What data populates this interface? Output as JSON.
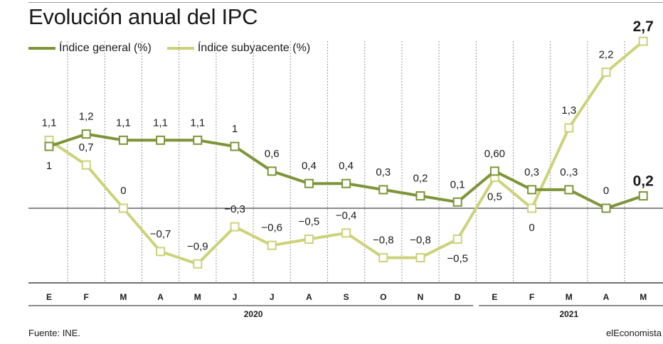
{
  "header": {
    "title": "Evolución anual del IPC"
  },
  "legend": {
    "items": [
      {
        "label": "Índice general (%)",
        "color": "#7d9539"
      },
      {
        "label": "Índice subyacente (%)",
        "color": "#cdd27a"
      }
    ]
  },
  "footer": {
    "source": "Fuente: INE.",
    "brand": "elEconomista"
  },
  "chart_data": {
    "type": "line",
    "categories": [
      "E",
      "F",
      "M",
      "A",
      "M",
      "J",
      "J",
      "A",
      "S",
      "O",
      "N",
      "D",
      "E",
      "F",
      "M",
      "A",
      "M"
    ],
    "years": [
      {
        "label": "2020",
        "from": 0,
        "to": 11
      },
      {
        "label": "2021",
        "from": 12,
        "to": 16
      }
    ],
    "ylim": [
      -0.95,
      2.8
    ],
    "grid": "vertical-dashed",
    "series": [
      {
        "name": "Índice general (%)",
        "color": "#7d9539",
        "values": [
          1,
          1.2,
          1.1,
          1.1,
          1.1,
          1,
          0.6,
          0.4,
          0.4,
          0.3,
          0.2,
          0.1,
          0.6,
          0.3,
          0.3,
          0,
          0.2
        ],
        "labels": [
          "1",
          "1,2",
          "1,1",
          "1,1",
          "1,1",
          "1",
          "0,6",
          "0,4",
          "0,4",
          "0,3",
          "0,2",
          "0,1",
          "0,60",
          "0,3",
          "0.,3",
          "0",
          "0,2"
        ],
        "label_pos": [
          "below",
          "above",
          "above",
          "above",
          "above",
          "above",
          "above",
          "above",
          "above",
          "above",
          "above",
          "above",
          "above",
          "above",
          "above",
          "above",
          "above"
        ]
      },
      {
        "name": "Índice subyacente (%)",
        "color": "#cdd27a",
        "values": [
          1.1,
          0.7,
          0,
          -0.7,
          -0.9,
          -0.3,
          -0.6,
          -0.5,
          -0.4,
          -0.8,
          -0.8,
          -0.5,
          0.5,
          0,
          1.3,
          2.2,
          2.7
        ],
        "labels": [
          "1,1",
          "0,7",
          "0",
          "−0,7",
          "−0,9",
          "−0,3",
          "−0,6",
          "−0,5",
          "−0,4",
          "−0,8",
          "−0,8",
          "−0,5",
          "0,5",
          "0",
          "1,3",
          "2,2",
          "2,7"
        ],
        "label_pos": [
          "above",
          "above",
          "above",
          "above",
          "above",
          "above",
          "above",
          "above",
          "above",
          "above",
          "above",
          "below",
          "below",
          "below",
          "above",
          "above",
          "above"
        ]
      }
    ],
    "highlight_last": true
  }
}
